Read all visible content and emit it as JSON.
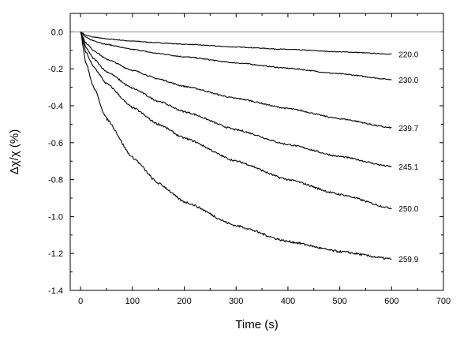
{
  "chart_data": {
    "type": "line",
    "title": "",
    "xlabel": "Time (s)",
    "ylabel": "Δχ/χ (%)",
    "xlim": [
      -20,
      700
    ],
    "ylim": [
      -1.4,
      0.1
    ],
    "x_ticks": [
      "0",
      "100",
      "200",
      "300",
      "400",
      "500",
      "600",
      "700"
    ],
    "y_ticks": [
      "0.0",
      "-0.2",
      "-0.4",
      "-0.6",
      "-0.8",
      "-1.0",
      "-1.2",
      "-1.4"
    ],
    "x_tick_values": [
      0,
      100,
      200,
      300,
      400,
      500,
      600,
      700
    ],
    "y_tick_values": [
      0,
      -0.2,
      -0.4,
      -0.6,
      -0.8,
      -1.0,
      -1.2,
      -1.4
    ],
    "reference_line_y": 0.0,
    "grid": false,
    "legend": "none",
    "series": [
      {
        "label": "220.0",
        "x": [
          0,
          10,
          25,
          50,
          100,
          150,
          200,
          300,
          400,
          500,
          600
        ],
        "y": [
          0,
          -0.018,
          -0.028,
          -0.038,
          -0.05,
          -0.059,
          -0.067,
          -0.082,
          -0.095,
          -0.108,
          -0.12
        ]
      },
      {
        "label": "230.0",
        "x": [
          0,
          10,
          25,
          50,
          100,
          150,
          200,
          300,
          400,
          500,
          600
        ],
        "y": [
          0,
          -0.03,
          -0.048,
          -0.068,
          -0.095,
          -0.117,
          -0.135,
          -0.168,
          -0.197,
          -0.227,
          -0.258
        ]
      },
      {
        "label": "239.7",
        "x": [
          0,
          10,
          25,
          50,
          100,
          150,
          200,
          300,
          400,
          500,
          600
        ],
        "y": [
          0,
          -0.06,
          -0.1,
          -0.148,
          -0.208,
          -0.255,
          -0.295,
          -0.36,
          -0.415,
          -0.47,
          -0.52
        ]
      },
      {
        "label": "245.1",
        "x": [
          0,
          10,
          25,
          50,
          100,
          150,
          200,
          300,
          400,
          500,
          600
        ],
        "y": [
          0,
          -0.085,
          -0.145,
          -0.215,
          -0.305,
          -0.375,
          -0.432,
          -0.53,
          -0.61,
          -0.675,
          -0.73
        ]
      },
      {
        "label": "250.0",
        "x": [
          0,
          10,
          25,
          50,
          100,
          150,
          200,
          300,
          400,
          500,
          600
        ],
        "y": [
          0,
          -0.11,
          -0.19,
          -0.28,
          -0.41,
          -0.5,
          -0.575,
          -0.7,
          -0.8,
          -0.88,
          -0.955
        ]
      },
      {
        "label": "259.9",
        "x": [
          0,
          10,
          25,
          50,
          100,
          150,
          200,
          300,
          400,
          500,
          600
        ],
        "y": [
          0,
          -0.165,
          -0.3,
          -0.47,
          -0.68,
          -0.82,
          -0.92,
          -1.05,
          -1.135,
          -1.19,
          -1.23
        ]
      }
    ]
  }
}
